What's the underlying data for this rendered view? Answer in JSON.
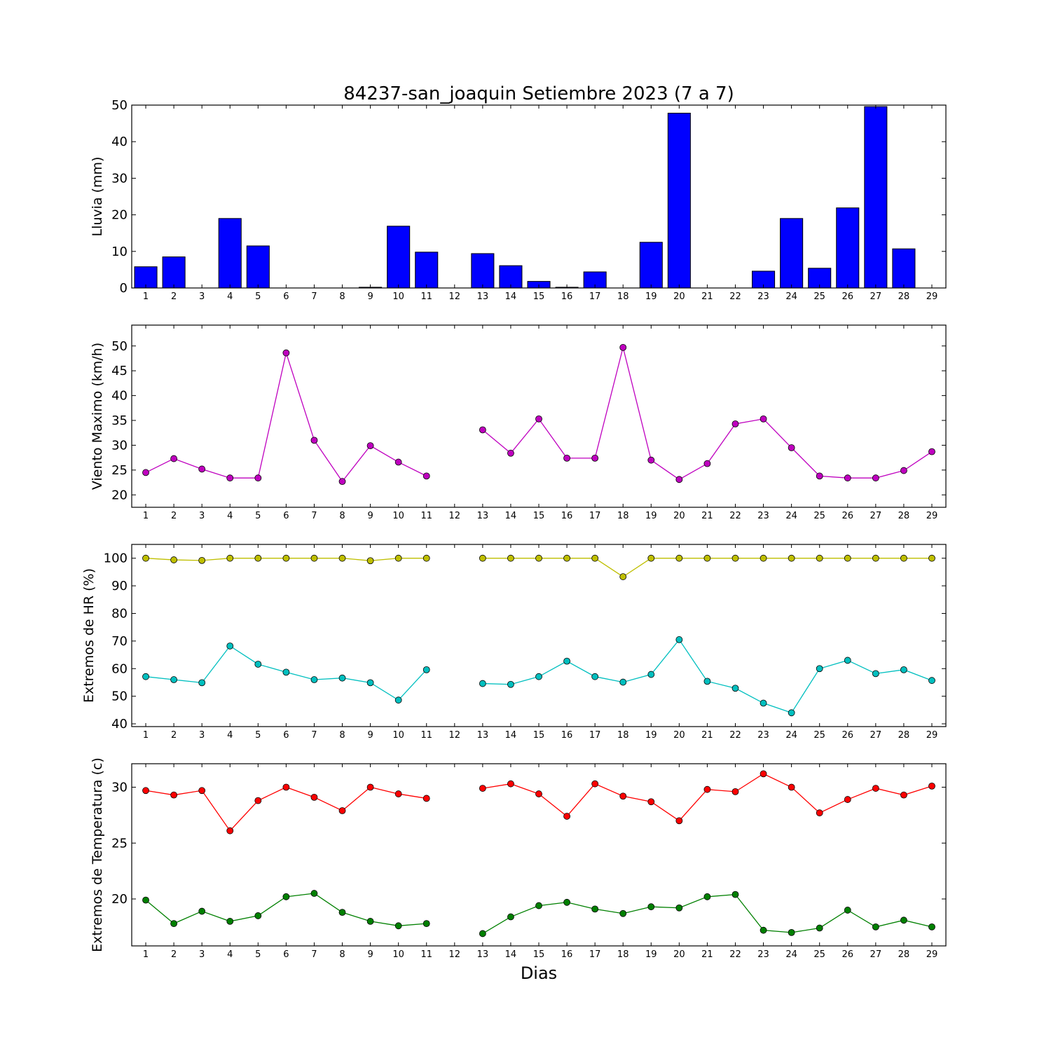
{
  "figure": {
    "title": "84237-san_joaquin Setiembre 2023  (7 a 7)",
    "xlabel": "Dias"
  },
  "colors": {
    "rain": "#0000ff",
    "wind": "#bf00bf",
    "hr_max": "#bfbf00",
    "hr_min": "#00bfbf",
    "temp_max": "#ff0000",
    "temp_min": "#008000"
  },
  "chart_data": [
    {
      "type": "bar",
      "ylabel": "Lluvia (mm)",
      "xlim": [
        0.5,
        29.5
      ],
      "ylim": [
        0,
        50
      ],
      "yticks": [
        0,
        10,
        20,
        30,
        40,
        50
      ],
      "categories": [
        1,
        2,
        3,
        4,
        5,
        6,
        7,
        8,
        9,
        10,
        11,
        12,
        13,
        14,
        15,
        16,
        17,
        18,
        19,
        20,
        21,
        22,
        23,
        24,
        25,
        26,
        27,
        28,
        29
      ],
      "values": [
        5.8,
        8.5,
        0,
        19.0,
        11.5,
        0,
        0,
        0,
        0.2,
        16.9,
        9.8,
        0,
        9.4,
        6.1,
        1.8,
        0.2,
        4.4,
        0,
        12.5,
        47.8,
        0,
        0,
        4.6,
        19.0,
        5.4,
        21.9,
        49.6,
        10.7,
        0
      ]
    },
    {
      "type": "line",
      "ylabel": "Viento Maximo (km/h)",
      "xlim": [
        0.5,
        29.5
      ],
      "ylim": [
        17.5,
        54.2
      ],
      "yticks": [
        20,
        25,
        30,
        35,
        40,
        45,
        50
      ],
      "x": [
        1,
        2,
        3,
        4,
        5,
        6,
        7,
        8,
        9,
        10,
        11,
        12,
        13,
        14,
        15,
        16,
        17,
        18,
        19,
        20,
        21,
        22,
        23,
        24,
        25,
        26,
        27,
        28,
        29
      ],
      "series": [
        {
          "colorKey": "wind",
          "values": [
            24.5,
            27.3,
            25.2,
            23.4,
            23.4,
            48.6,
            31.0,
            22.7,
            29.9,
            26.6,
            23.8,
            null,
            33.1,
            28.4,
            35.3,
            27.4,
            27.4,
            49.7,
            27.0,
            23.1,
            26.3,
            34.3,
            35.3,
            29.5,
            23.8,
            23.4,
            23.4,
            24.9,
            28.7
          ]
        }
      ]
    },
    {
      "type": "line",
      "ylabel": "Extremos de HR (%)",
      "xlim": [
        0.5,
        29.5
      ],
      "ylim": [
        39,
        105
      ],
      "yticks": [
        40,
        50,
        60,
        70,
        80,
        90,
        100
      ],
      "x": [
        1,
        2,
        3,
        4,
        5,
        6,
        7,
        8,
        9,
        10,
        11,
        12,
        13,
        14,
        15,
        16,
        17,
        18,
        19,
        20,
        21,
        22,
        23,
        24,
        25,
        26,
        27,
        28,
        29
      ],
      "series": [
        {
          "colorKey": "hr_max",
          "values": [
            100,
            99.4,
            99.2,
            100,
            100,
            100,
            100,
            100,
            99.1,
            100,
            100,
            null,
            100,
            100,
            100,
            100,
            100,
            93.3,
            100,
            100,
            100,
            100,
            100,
            100,
            100,
            100,
            100,
            100,
            100
          ]
        },
        {
          "colorKey": "hr_min",
          "values": [
            57.1,
            56.0,
            54.9,
            68.2,
            61.6,
            58.7,
            56.0,
            56.6,
            54.9,
            48.6,
            59.6,
            null,
            54.6,
            54.3,
            57.1,
            62.7,
            57.1,
            55.1,
            57.9,
            70.5,
            55.4,
            52.9,
            47.5,
            44.0,
            60.0,
            63.0,
            58.2,
            59.6,
            55.7
          ]
        }
      ]
    },
    {
      "type": "line",
      "ylabel": "Extremos de Temperatura (c)",
      "xlim": [
        0.5,
        29.5
      ],
      "ylim": [
        15.8,
        32.1
      ],
      "yticks": [
        20,
        25,
        30
      ],
      "x": [
        1,
        2,
        3,
        4,
        5,
        6,
        7,
        8,
        9,
        10,
        11,
        12,
        13,
        14,
        15,
        16,
        17,
        18,
        19,
        20,
        21,
        22,
        23,
        24,
        25,
        26,
        27,
        28,
        29
      ],
      "series": [
        {
          "colorKey": "temp_max",
          "values": [
            29.7,
            29.3,
            29.7,
            26.1,
            28.8,
            30.0,
            29.1,
            27.9,
            30.0,
            29.4,
            29.0,
            null,
            29.9,
            30.3,
            29.4,
            27.4,
            30.3,
            29.2,
            28.7,
            27.0,
            29.8,
            29.6,
            31.2,
            30.0,
            27.7,
            28.9,
            29.9,
            29.3,
            30.1
          ]
        },
        {
          "colorKey": "temp_min",
          "values": [
            19.9,
            17.8,
            18.9,
            18.0,
            18.5,
            20.2,
            20.5,
            18.8,
            18.0,
            17.6,
            17.8,
            null,
            16.9,
            18.4,
            19.4,
            19.7,
            19.1,
            18.7,
            19.3,
            19.2,
            20.2,
            20.4,
            17.2,
            17.0,
            17.4,
            19.0,
            17.5,
            18.1,
            17.5
          ]
        }
      ]
    }
  ]
}
